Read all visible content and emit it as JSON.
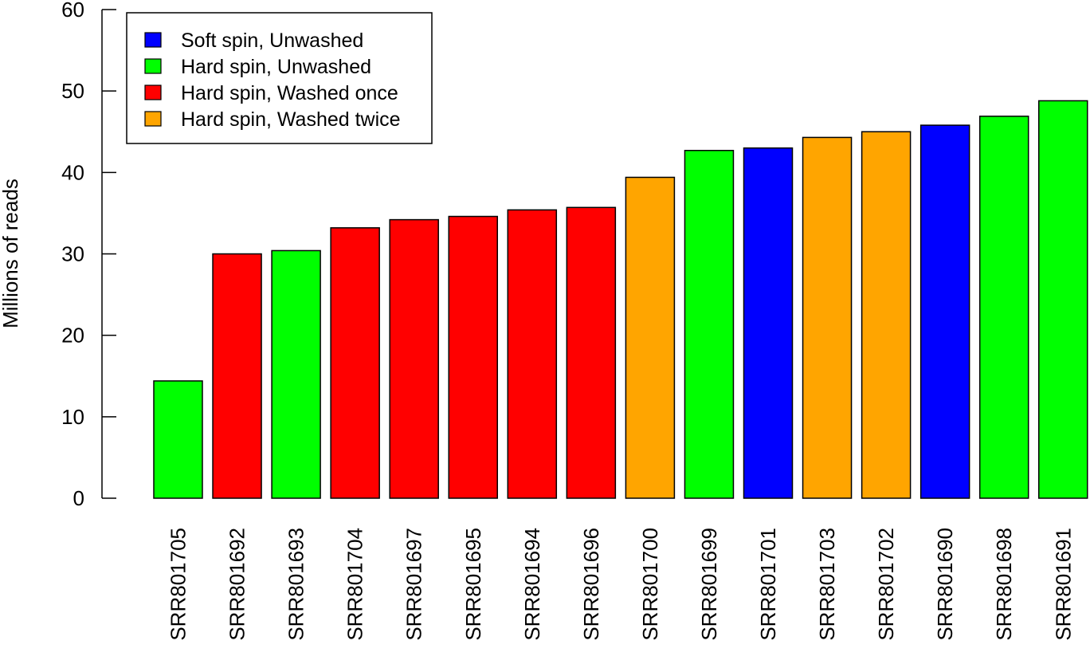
{
  "chart_data": {
    "type": "bar",
    "title": "",
    "xlabel": "",
    "ylabel": "Millions of reads",
    "ylim": [
      0,
      60
    ],
    "yticks": [
      0,
      10,
      20,
      30,
      40,
      50,
      60
    ],
    "grid": false,
    "legend_position": "top-left",
    "legend": [
      {
        "label": "Soft spin, Unwashed",
        "color": "#0000ff"
      },
      {
        "label": "Hard spin, Unwashed",
        "color": "#00ff00"
      },
      {
        "label": "Hard spin, Washed once",
        "color": "#ff0000"
      },
      {
        "label": "Hard spin, Washed twice",
        "color": "#ffa500"
      }
    ],
    "categories": [
      "SRR801705",
      "SRR801692",
      "SRR801693",
      "SRR801704",
      "SRR801697",
      "SRR801695",
      "SRR801694",
      "SRR801696",
      "SRR801700",
      "SRR801699",
      "SRR801701",
      "SRR801703",
      "SRR801702",
      "SRR801690",
      "SRR801698",
      "SRR801691"
    ],
    "values": [
      14.4,
      30.0,
      30.4,
      33.2,
      34.2,
      34.6,
      35.4,
      35.7,
      39.4,
      42.7,
      43.0,
      44.3,
      45.0,
      45.8,
      46.9,
      48.8
    ],
    "groups": [
      1,
      2,
      1,
      2,
      2,
      2,
      2,
      2,
      3,
      1,
      0,
      3,
      3,
      0,
      1,
      1
    ]
  }
}
